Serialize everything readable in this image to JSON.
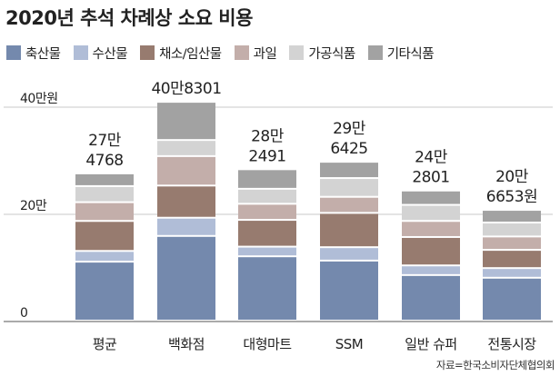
{
  "title": "2020년 추석 차례상 소요 비용",
  "source": "자료=한국소비자단체협의회",
  "colors": {
    "축산물": "#7489ad",
    "수산물": "#b0bdd7",
    "채소/임산물": "#977b6f",
    "과일": "#c3aeaa",
    "가공식품": "#d3d3d3",
    "기타식품": "#a2a2a2"
  },
  "chart_data": {
    "type": "bar",
    "stacked": true,
    "unit": "원",
    "title": "2020년 추석 차례상 소요 비용",
    "ylim": [
      0,
      440000
    ],
    "y_ticks": [
      {
        "value": 0,
        "label": "0"
      },
      {
        "value": 200000,
        "label": "20만"
      },
      {
        "value": 400000,
        "label": "40만원"
      }
    ],
    "categories": [
      "평균",
      "백화점",
      "대형마트",
      "SSM",
      "일반 슈퍼",
      "전통시장"
    ],
    "totals": [
      274768,
      408301,
      282491,
      296425,
      242801,
      206653
    ],
    "total_labels": [
      [
        "27만",
        "4768"
      ],
      [
        "40만8301",
        ""
      ],
      [
        "28만",
        "2491"
      ],
      [
        "29만",
        "6425"
      ],
      [
        "24만",
        "2801"
      ],
      [
        "20만",
        "6653원"
      ]
    ],
    "series": [
      {
        "name": "축산물",
        "values": [
          110000,
          158000,
          120000,
          112000,
          85000,
          80000
        ]
      },
      {
        "name": "수산물",
        "values": [
          20000,
          34000,
          18000,
          25000,
          18000,
          18000
        ]
      },
      {
        "name": "채소/임산물",
        "values": [
          56000,
          60000,
          50000,
          64000,
          53000,
          34000
        ]
      },
      {
        "name": "과일",
        "values": [
          35000,
          55000,
          30000,
          30000,
          30000,
          25000
        ]
      },
      {
        "name": "가공식품",
        "values": [
          30000,
          30000,
          28000,
          35000,
          30000,
          26000
        ]
      },
      {
        "name": "기타식품",
        "values": [
          23768,
          71301,
          36491,
          30425,
          26801,
          23653
        ]
      }
    ],
    "legend_position": "top-left",
    "grid": true
  }
}
